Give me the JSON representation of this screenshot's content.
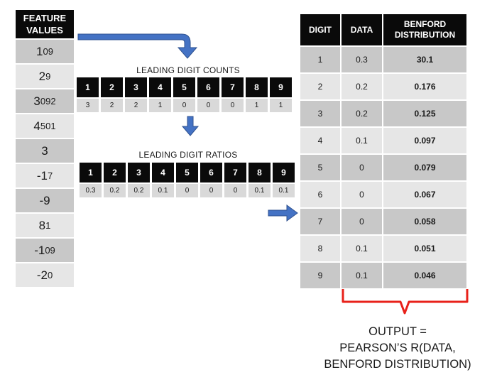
{
  "feature_values": {
    "header_line1": "FEATURE",
    "header_line2": "VALUES",
    "items": [
      {
        "lead": "1",
        "rest": "09"
      },
      {
        "lead": "2",
        "rest": "9"
      },
      {
        "lead": "3",
        "rest": "092"
      },
      {
        "lead": "4",
        "rest": "501"
      },
      {
        "lead": "3",
        "rest": ""
      },
      {
        "lead": "-1",
        "rest": "7"
      },
      {
        "lead": "-9",
        "rest": ""
      },
      {
        "lead": "8",
        "rest": "1"
      },
      {
        "lead": "-1",
        "rest": "09"
      },
      {
        "lead": "-2",
        "rest": "0"
      }
    ]
  },
  "digits": [
    "1",
    "2",
    "3",
    "4",
    "5",
    "6",
    "7",
    "8",
    "9"
  ],
  "leading_digit_counts": {
    "title": "LEADING DIGIT COUNTS",
    "values": [
      "3",
      "2",
      "2",
      "1",
      "0",
      "0",
      "0",
      "1",
      "1"
    ]
  },
  "leading_digit_ratios": {
    "title": "LEADING DIGIT RATIOS",
    "values": [
      "0.3",
      "0.2",
      "0.2",
      "0.1",
      "0",
      "0",
      "0",
      "0.1",
      "0.1"
    ]
  },
  "comparison_table": {
    "headers": {
      "digit": "DIGIT",
      "data": "DATA",
      "benford_line1": "BENFORD",
      "benford_line2": "DISTRIBUTION"
    },
    "rows": [
      {
        "digit": "1",
        "data": "0.3",
        "benford": "30.1"
      },
      {
        "digit": "2",
        "data": "0.2",
        "benford": "0.176"
      },
      {
        "digit": "3",
        "data": "0.2",
        "benford": "0.125"
      },
      {
        "digit": "4",
        "data": "0.1",
        "benford": "0.097"
      },
      {
        "digit": "5",
        "data": "0",
        "benford": "0.079"
      },
      {
        "digit": "6",
        "data": "0",
        "benford": "0.067"
      },
      {
        "digit": "7",
        "data": "0",
        "benford": "0.058"
      },
      {
        "digit": "8",
        "data": "0.1",
        "benford": "0.051"
      },
      {
        "digit": "9",
        "data": "0.1",
        "benford": "0.046"
      }
    ]
  },
  "output": {
    "line1": "OUTPUT =",
    "line2": "PEARSON’S R(DATA,",
    "line3": "BENFORD DISTRIBUTION)"
  },
  "colors": {
    "arrow": "#4472c4",
    "arrow_edge": "#2f528f",
    "brace": "#e8211a",
    "shade_dark": "#c8c8c8",
    "shade_light": "#e6e6e6"
  }
}
